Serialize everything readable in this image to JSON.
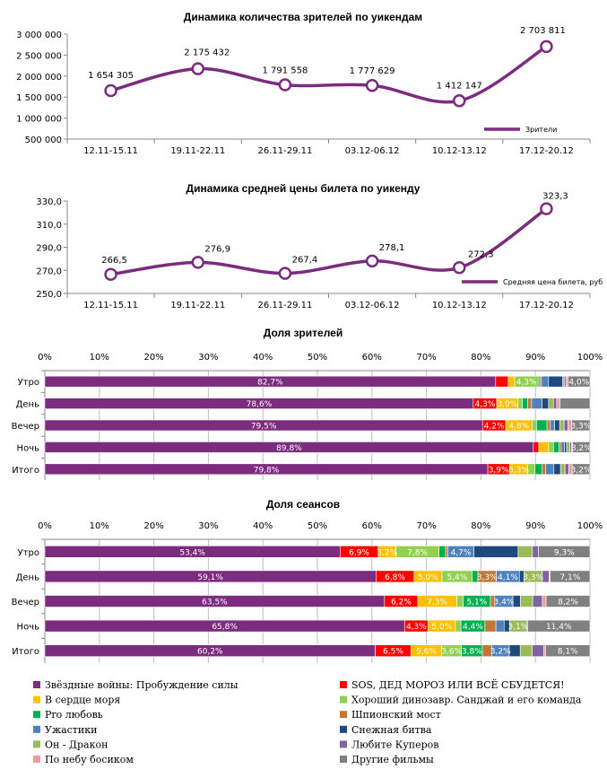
{
  "chart_data": [
    {
      "type": "line",
      "title": "Динамика количества зрителей по уикендам",
      "categories": [
        "12.11-15.11",
        "19.11-22.11",
        "26.11-29.11",
        "03.12-06.12",
        "10.12-13.12",
        "17.12-20.12"
      ],
      "series": [
        {
          "name": "Зрители",
          "values": [
            1654305,
            2175432,
            1791558,
            1777629,
            1412147,
            2703811
          ]
        }
      ],
      "value_labels": [
        "1 654 305",
        "2 175 432",
        "1 791 558",
        "1 777 629",
        "1 412 147",
        "2 703 811"
      ],
      "ylim": [
        500000,
        3000000
      ],
      "yticks": [
        500000,
        1000000,
        1500000,
        2000000,
        2500000,
        3000000
      ],
      "ytick_labels": [
        "500 000",
        "1 000 000",
        "1 500 000",
        "2 000 000",
        "2 500 000",
        "3 000 000"
      ],
      "legend_position": "bottom-right"
    },
    {
      "type": "line",
      "title": "Динамика средней цены билета по уикенду",
      "categories": [
        "12.11-15.11",
        "19.11-22.11",
        "26.11-29.11",
        "03.12-06.12",
        "10.12-13.12",
        "17.12-20.12"
      ],
      "series": [
        {
          "name": "Средняя цена билета, руб",
          "values": [
            266.5,
            276.9,
            267.4,
            278.1,
            272.3,
            323.3
          ]
        }
      ],
      "value_labels": [
        "266,5",
        "276,9",
        "267,4",
        "278,1",
        "272,3",
        "323,3"
      ],
      "ylim": [
        250,
        330
      ],
      "yticks": [
        250,
        270,
        290,
        310,
        330
      ],
      "ytick_labels": [
        "250,0",
        "270,0",
        "290,0",
        "310,0",
        "330,0"
      ],
      "legend_position": "bottom-right"
    },
    {
      "type": "bar",
      "orientation": "horizontal-stacked-100",
      "title": "Доля зрителей",
      "categories": [
        "Утро",
        "День",
        "Вечер",
        "Ночь",
        "Итого"
      ],
      "xticks": [
        "0%",
        "10%",
        "20%",
        "30%",
        "40%",
        "50%",
        "60%",
        "70%",
        "80%",
        "90%",
        "100%"
      ],
      "series": [
        {
          "name": "Звёздные войны: Пробуждение силы",
          "values": [
            82.7,
            78.6,
            79.5,
            89.8,
            79.8
          ]
        },
        {
          "name": "SOS, ДЕД МОРОЗ ИЛИ ВСЁ СБУДЕТСЯ!",
          "values": [
            2.3,
            4.3,
            4.2,
            1.0,
            3.9
          ]
        },
        {
          "name": "В сердце моря",
          "values": [
            1.2,
            3.9,
            4.8,
            1.8,
            3.3
          ]
        },
        {
          "name": "Хороший динозавр. Санджай и его команда",
          "values": [
            4.3,
            0.8,
            0.8,
            0.9,
            1.3
          ]
        },
        {
          "name": "Pro любовь",
          "values": [
            0.3,
            1.0,
            1.9,
            1.0,
            1.3
          ]
        },
        {
          "name": "Шпионский мост",
          "values": [
            0.3,
            0.7,
            0.6,
            0.4,
            0.6
          ]
        },
        {
          "name": "Ужастики",
          "values": [
            1.3,
            1.9,
            0.8,
            0.6,
            1.5
          ]
        },
        {
          "name": "Снежная битва",
          "values": [
            2.6,
            1.2,
            0.9,
            0.4,
            1.2
          ]
        },
        {
          "name": "Он - Дракон",
          "values": [
            0.3,
            0.9,
            0.8,
            0.6,
            0.8
          ]
        },
        {
          "name": "Любите Куперов",
          "values": [
            0.3,
            0.6,
            0.7,
            0.3,
            0.7
          ]
        },
        {
          "name": "По небу босиком",
          "values": [
            0.4,
            0.6,
            0.7,
            0.2,
            0.6
          ]
        },
        {
          "name": "Другие фильмы",
          "values": [
            4.0,
            5.5,
            3.3,
            3.2,
            3.2
          ]
        }
      ],
      "segment_labels": [
        {
          "series": 0,
          "row": 0,
          "text": "82,7%"
        },
        {
          "series": 3,
          "row": 0,
          "text": "4,3%"
        },
        {
          "series": 11,
          "row": 0,
          "text": "4,0%"
        },
        {
          "series": 0,
          "row": 1,
          "text": "78,6%"
        },
        {
          "series": 1,
          "row": 1,
          "text": "4,3%"
        },
        {
          "series": 2,
          "row": 1,
          "text": "3,9%"
        },
        {
          "series": 0,
          "row": 2,
          "text": "79,5%"
        },
        {
          "series": 1,
          "row": 2,
          "text": "4,2%"
        },
        {
          "series": 2,
          "row": 2,
          "text": "4,8%"
        },
        {
          "series": 11,
          "row": 2,
          "text": "3,3%"
        },
        {
          "series": 0,
          "row": 3,
          "text": "89,8%"
        },
        {
          "series": 11,
          "row": 3,
          "text": "3,2%"
        },
        {
          "series": 0,
          "row": 4,
          "text": "79,8%"
        },
        {
          "series": 1,
          "row": 4,
          "text": "3,9%"
        },
        {
          "series": 2,
          "row": 4,
          "text": "3,3%"
        },
        {
          "series": 11,
          "row": 4,
          "text": "3,2%"
        }
      ]
    },
    {
      "type": "bar",
      "orientation": "horizontal-stacked-100",
      "title": "Доля сеансов",
      "categories": [
        "Утро",
        "День",
        "Вечер",
        "Ночь",
        "Итого"
      ],
      "xticks": [
        "0%",
        "10%",
        "20%",
        "30%",
        "40%",
        "50%",
        "60%",
        "70%",
        "80%",
        "90%",
        "100%"
      ],
      "series": [
        {
          "name": "Звёздные войны: Пробуждение силы",
          "values": [
            53.4,
            59.1,
            63.5,
            65.8,
            60.2
          ]
        },
        {
          "name": "SOS, ДЕД МОРОЗ ИЛИ ВСЁ СБУДЕТСЯ!",
          "values": [
            6.9,
            6.8,
            6.2,
            4.3,
            6.5
          ]
        },
        {
          "name": "В сердце моря",
          "values": [
            3.2,
            5.0,
            7.3,
            5.0,
            5.6
          ]
        },
        {
          "name": "Хороший динозавр. Санджай и его команда",
          "values": [
            7.8,
            5.4,
            1.2,
            1.0,
            3.6
          ]
        },
        {
          "name": "Pro любовь",
          "values": [
            1.2,
            1.0,
            5.1,
            4.4,
            3.8
          ]
        },
        {
          "name": "Шпионский мост",
          "values": [
            0.4,
            3.3,
            0.8,
            2.0,
            1.7
          ]
        },
        {
          "name": "Ужастики",
          "values": [
            4.7,
            4.1,
            3.4,
            1.5,
            3.2
          ]
        },
        {
          "name": "Снежная битва",
          "values": [
            8.0,
            0.8,
            1.4,
            1.0,
            2.0
          ]
        },
        {
          "name": "Он - Дракон",
          "values": [
            2.6,
            3.3,
            2.3,
            3.1,
            2.2
          ]
        },
        {
          "name": "Любите Куперов",
          "values": [
            1.1,
            1.2,
            1.8,
            0.2,
            2.1
          ]
        },
        {
          "name": "По небу босиком",
          "values": [
            0.0,
            0.2,
            0.7,
            0.0,
            0.3
          ]
        },
        {
          "name": "Другие фильмы",
          "values": [
            9.3,
            7.1,
            8.2,
            11.4,
            8.1
          ]
        }
      ],
      "segment_labels": [
        {
          "series": 0,
          "row": 0,
          "text": "53,4%"
        },
        {
          "series": 1,
          "row": 0,
          "text": "6,9%"
        },
        {
          "series": 2,
          "row": 0,
          "text": "3,2%"
        },
        {
          "series": 3,
          "row": 0,
          "text": "7,8%"
        },
        {
          "series": 6,
          "row": 0,
          "text": "4,7%"
        },
        {
          "series": 11,
          "row": 0,
          "text": "9,3%"
        },
        {
          "series": 0,
          "row": 1,
          "text": "59,1%"
        },
        {
          "series": 1,
          "row": 1,
          "text": "6,8%"
        },
        {
          "series": 2,
          "row": 1,
          "text": "5,0%"
        },
        {
          "series": 3,
          "row": 1,
          "text": "5,4%"
        },
        {
          "series": 5,
          "row": 1,
          "text": "3,3%"
        },
        {
          "series": 6,
          "row": 1,
          "text": "4,1%"
        },
        {
          "series": 8,
          "row": 1,
          "text": "3,3%"
        },
        {
          "series": 11,
          "row": 1,
          "text": "7,1%"
        },
        {
          "series": 0,
          "row": 2,
          "text": "63,5%"
        },
        {
          "series": 1,
          "row": 2,
          "text": "6,2%"
        },
        {
          "series": 2,
          "row": 2,
          "text": "7,3%"
        },
        {
          "series": 4,
          "row": 2,
          "text": "5,1%"
        },
        {
          "series": 6,
          "row": 2,
          "text": "3,4%"
        },
        {
          "series": 11,
          "row": 2,
          "text": "8,2%"
        },
        {
          "series": 0,
          "row": 3,
          "text": "65,8%"
        },
        {
          "series": 1,
          "row": 3,
          "text": "4,3%"
        },
        {
          "series": 2,
          "row": 3,
          "text": "5,0%"
        },
        {
          "series": 4,
          "row": 3,
          "text": "4,4%"
        },
        {
          "series": 8,
          "row": 3,
          "text": "3,1%"
        },
        {
          "series": 11,
          "row": 3,
          "text": "11,4%"
        },
        {
          "series": 0,
          "row": 4,
          "text": "60,2%"
        },
        {
          "series": 1,
          "row": 4,
          "text": "6,5%"
        },
        {
          "series": 2,
          "row": 4,
          "text": "5,6%"
        },
        {
          "series": 3,
          "row": 4,
          "text": "3,6%"
        },
        {
          "series": 4,
          "row": 4,
          "text": "3,8%"
        },
        {
          "series": 6,
          "row": 4,
          "text": "3,2%"
        },
        {
          "series": 11,
          "row": 4,
          "text": "8,1%"
        }
      ]
    }
  ],
  "legend": {
    "items": [
      "Звёздные войны: Пробуждение силы",
      "SOS, ДЕД МОРОЗ ИЛИ ВСЁ СБУДЕТСЯ!",
      "В сердце моря",
      "Хороший динозавр. Санджай и его команда",
      "Pro любовь",
      "Шпионский мост",
      "Ужастики",
      "Снежная битва",
      "Он - Дракон",
      "Любите Куперов",
      "По небу босиком",
      "Другие фильмы"
    ]
  },
  "colors": {
    "line": "#7B2C7E",
    "series": [
      "#7B2C7E",
      "#FF0000",
      "#FFC000",
      "#92D050",
      "#00B050",
      "#C0773A",
      "#4F81BD",
      "#1F497D",
      "#9BBB59",
      "#8064A2",
      "#E6A0A0",
      "#808080"
    ]
  }
}
